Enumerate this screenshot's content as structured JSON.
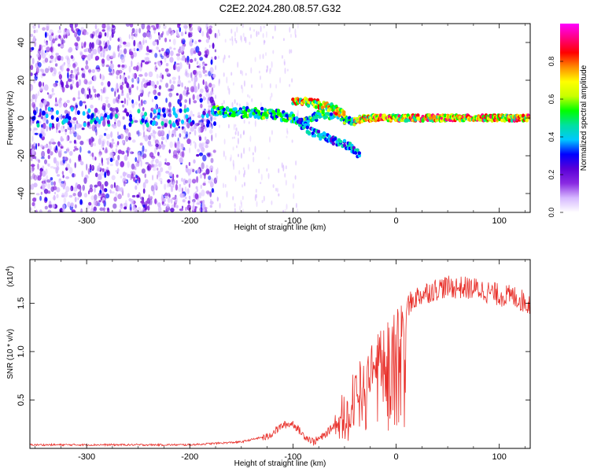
{
  "title": "C2E2.2024.280.08.57.G32",
  "chart_data": [
    {
      "type": "heatmap",
      "title": "C2E2.2024.280.08.57.G32",
      "xlabel": "Height of straight line (km)",
      "ylabel": "Frequency (Hz)",
      "xlim": [
        -355,
        130
      ],
      "ylim": [
        -50,
        50
      ],
      "xticks": [
        -300,
        -200,
        -100,
        0,
        100
      ],
      "xticklabels": [
        "-300",
        "-200",
        "-100",
        "0",
        "100"
      ],
      "yticks": [
        -40,
        -20,
        0,
        20,
        40
      ],
      "yticklabels": [
        "-40",
        "-20",
        "0",
        "20",
        "40"
      ],
      "colorbar": {
        "label": "Normalized spectral amplitude",
        "range": [
          0,
          1
        ],
        "ticks": [
          0.0,
          0.2,
          0.4,
          0.6,
          0.8
        ],
        "ticklabels": [
          "0.0",
          "0.2",
          "0.4",
          "0.6",
          "0.8"
        ],
        "colors": [
          "#ffffff",
          "#d6b8ff",
          "#8a2be2",
          "#5a00d8",
          "#0000ff",
          "#00c8ff",
          "#00e0a0",
          "#00ff00",
          "#c8ff00",
          "#ffff00",
          "#ff8c00",
          "#ff0000",
          "#ff0080",
          "#ff00ff"
        ]
      },
      "features": {
        "noise_region_x": [
          -355,
          -175
        ],
        "main_track": [
          {
            "x": -178,
            "y": 4
          },
          {
            "x": -160,
            "y": 3
          },
          {
            "x": -140,
            "y": 3
          },
          {
            "x": -120,
            "y": 2
          },
          {
            "x": -100,
            "y": 0
          },
          {
            "x": -90,
            "y": -3
          },
          {
            "x": -75,
            "y": 2
          },
          {
            "x": -60,
            "y": 2
          },
          {
            "x": -45,
            "y": -2
          },
          {
            "x": -30,
            "y": 0
          },
          {
            "x": 0,
            "y": 0
          },
          {
            "x": 50,
            "y": 0
          },
          {
            "x": 130,
            "y": 0
          }
        ],
        "upper_branch": [
          {
            "x": -100,
            "y": 9
          },
          {
            "x": -80,
            "y": 8
          },
          {
            "x": -65,
            "y": 6
          },
          {
            "x": -50,
            "y": 2
          }
        ],
        "descending_branch": [
          {
            "x": -95,
            "y": -2
          },
          {
            "x": -80,
            "y": -8
          },
          {
            "x": -60,
            "y": -12
          },
          {
            "x": -45,
            "y": -15
          },
          {
            "x": -35,
            "y": -20
          }
        ]
      }
    },
    {
      "type": "line",
      "title": "",
      "xlabel": "Height of straight line (km)",
      "ylabel": "SNR (10 * v/v)",
      "multiplier_label": "(x10",
      "multiplier_exponent": "4",
      "multiplier_close": ")",
      "xlim": [
        -355,
        130
      ],
      "ylim": [
        0,
        1.95
      ],
      "xticks": [
        -300,
        -200,
        -100,
        0,
        100
      ],
      "xticklabels": [
        "-300",
        "-200",
        "-100",
        "0",
        "100"
      ],
      "yticks": [
        0.5,
        1.0,
        1.5
      ],
      "yticklabels": [
        "0.5",
        "1.0",
        "1.5"
      ],
      "series": [
        {
          "name": "SNR",
          "color": "#e8302a",
          "envelope": [
            {
              "x": -355,
              "y": 0.04
            },
            {
              "x": -200,
              "y": 0.04
            },
            {
              "x": -150,
              "y": 0.07
            },
            {
              "x": -125,
              "y": 0.13
            },
            {
              "x": -110,
              "y": 0.25
            },
            {
              "x": -100,
              "y": 0.27
            },
            {
              "x": -90,
              "y": 0.15
            },
            {
              "x": -80,
              "y": 0.08
            },
            {
              "x": -70,
              "y": 0.14
            },
            {
              "x": -60,
              "y": 0.25
            },
            {
              "x": -50,
              "y": 0.45
            },
            {
              "x": -40,
              "y": 0.65
            },
            {
              "x": -30,
              "y": 0.8
            },
            {
              "x": -20,
              "y": 1.0
            },
            {
              "x": -10,
              "y": 1.1
            },
            {
              "x": 0,
              "y": 1.3
            },
            {
              "x": 10,
              "y": 1.5
            },
            {
              "x": 20,
              "y": 1.6
            },
            {
              "x": 30,
              "y": 1.65
            },
            {
              "x": 45,
              "y": 1.7
            },
            {
              "x": 60,
              "y": 1.7
            },
            {
              "x": 80,
              "y": 1.68
            },
            {
              "x": 100,
              "y": 1.62
            },
            {
              "x": 115,
              "y": 1.6
            },
            {
              "x": 130,
              "y": 1.52
            }
          ]
        }
      ]
    }
  ]
}
